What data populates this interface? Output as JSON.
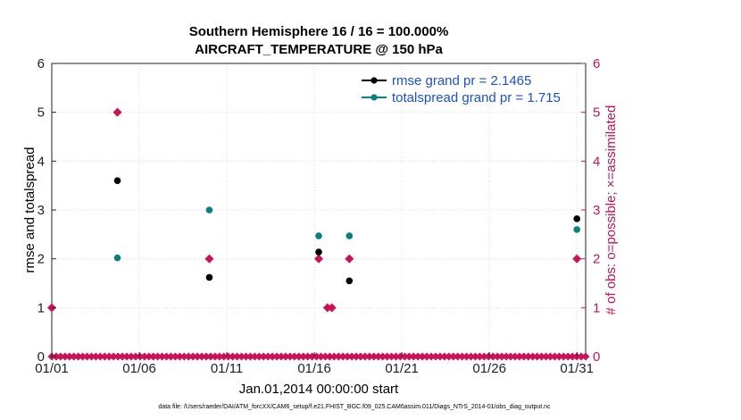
{
  "chart_data": {
    "type": "scatter",
    "title_line1": "Southern Hemisphere 16 / 16 = 100.000%",
    "title_line2": "AIRCRAFT_TEMPERATURE @ 150 hPa",
    "xlabel": "Jan.01,2014 00:00:00 start",
    "ylabel_left": "rmse and totalspread",
    "ylabel_right": "# of obs: o=possible; ×=assimilated",
    "xlim": [
      1,
      31.5
    ],
    "ylim": [
      0,
      6
    ],
    "x_ticks": [
      {
        "x": 1,
        "label": "01/01"
      },
      {
        "x": 6,
        "label": "01/06"
      },
      {
        "x": 11,
        "label": "01/11"
      },
      {
        "x": 16,
        "label": "01/16"
      },
      {
        "x": 21,
        "label": "01/21"
      },
      {
        "x": 26,
        "label": "01/26"
      },
      {
        "x": 31,
        "label": "01/31"
      }
    ],
    "y_ticks_left": [
      "0",
      "1",
      "2",
      "3",
      "4",
      "5",
      "6"
    ],
    "y_ticks_right": [
      "0",
      "1",
      "2",
      "3",
      "4",
      "5",
      "6"
    ],
    "legend": [
      {
        "label": "rmse grand pr = 2.1465",
        "color": "#000000"
      },
      {
        "label": "totalspread grand pr = 1.715",
        "color": "#0a8080"
      }
    ],
    "series": [
      {
        "name": "rmse",
        "color": "#000000",
        "points": [
          [
            4.75,
            3.6
          ],
          [
            10.0,
            1.62
          ],
          [
            16.25,
            2.14
          ],
          [
            18.0,
            1.55
          ],
          [
            31.0,
            2.82
          ]
        ]
      },
      {
        "name": "totalspread",
        "color": "#0a8080",
        "points": [
          [
            4.75,
            2.02
          ],
          [
            10.0,
            3.0
          ],
          [
            16.25,
            2.47
          ],
          [
            18.0,
            2.47
          ],
          [
            31.0,
            2.6
          ]
        ]
      },
      {
        "name": "obs_count",
        "color": "#cc1155",
        "nonzero_points": [
          [
            1.0,
            1
          ],
          [
            4.75,
            5
          ],
          [
            10.0,
            2
          ],
          [
            16.25,
            2
          ],
          [
            16.75,
            1
          ],
          [
            17.0,
            1
          ],
          [
            18.0,
            2
          ],
          [
            31.0,
            2
          ]
        ],
        "zero_count_markers": 122
      }
    ],
    "footer": "data file: /Users/raeder/DAI/ATM_forcXX/CAM6_setup/f.e21.FHIST_BGC.f09_025.CAM6assim.011/Diags_NTrS_2014-01/obs_diag_output.nc"
  }
}
